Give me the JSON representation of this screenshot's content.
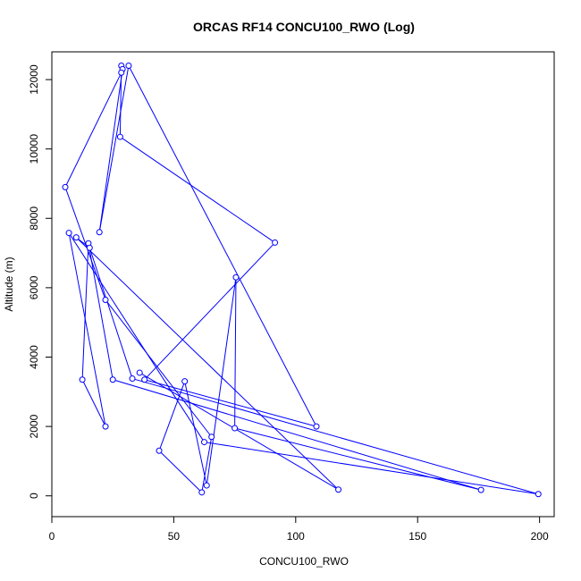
{
  "chart_data": {
    "type": "scatter",
    "title": "ORCAS RF14 CONCU100_RWO (Log)",
    "xlabel": "CONCU100_RWO",
    "ylabel": "Altitude (m)",
    "xlim": [
      0,
      206
    ],
    "ylim": [
      -600,
      12800
    ],
    "x_ticks": [
      0,
      50,
      100,
      150,
      200
    ],
    "y_ticks": [
      0,
      2000,
      4000,
      6000,
      8000,
      10000,
      12000
    ],
    "grid": false,
    "legend": "none",
    "series_color": "#0000ff",
    "x": [
      28.5,
      31.5,
      29,
      28.5,
      28,
      5.5,
      19.5,
      91.5,
      75.5,
      75,
      108.5,
      7,
      10,
      15,
      15.5,
      22,
      54.5,
      36,
      38,
      33,
      12.5,
      25,
      22,
      44,
      65.5,
      62.5,
      117.5,
      63.5,
      61.5,
      176,
      199.5
    ],
    "y": [
      12400,
      12400,
      12300,
      12200,
      10350,
      8900,
      7600,
      7300,
      6300,
      1950,
      2000,
      7580,
      7450,
      7280,
      7150,
      5650,
      3300,
      3550,
      3350,
      3380,
      3350,
      3350,
      2000,
      1300,
      1700,
      1550,
      180,
      300,
      100,
      170,
      50
    ],
    "order": [
      0,
      4,
      7,
      18,
      10,
      1,
      6,
      2,
      3,
      5,
      15,
      24,
      28,
      23,
      16,
      27,
      8,
      9,
      29,
      21,
      13,
      20,
      22,
      11,
      25,
      30,
      19,
      14,
      12,
      26,
      17
    ]
  }
}
